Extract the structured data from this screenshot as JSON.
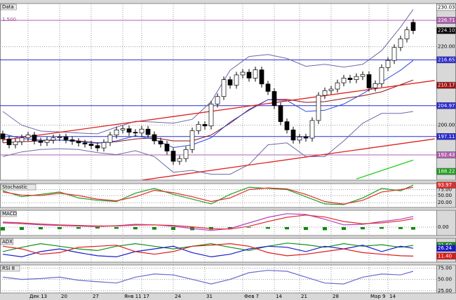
{
  "chart_data": [
    {
      "type": "candlestick",
      "title": "Data",
      "annotation": "1.500",
      "categories": [
        null,
        null,
        null,
        null,
        "Дек 13",
        null,
        null,
        null,
        null,
        "20",
        null,
        null,
        null,
        null,
        "27",
        null,
        null,
        null,
        null,
        "Янв 11",
        null,
        null,
        "17",
        null,
        null,
        null,
        null,
        "24",
        null,
        null,
        null,
        null,
        "31",
        null,
        null,
        null,
        null,
        null,
        "Фев 7",
        null,
        null,
        null,
        null,
        "14",
        null,
        null,
        null,
        "21",
        null,
        null,
        null,
        null,
        "28",
        null,
        null,
        null,
        null,
        null,
        "Мар 9",
        null,
        null,
        "14",
        null,
        null,
        null,
        null
      ],
      "open": [
        197.8,
        196.5,
        195.0,
        195.8,
        196.8,
        197.5,
        196.0,
        195.6,
        196.2,
        196.8,
        197.0,
        196.3,
        195.9,
        195.5,
        195.2,
        194.8,
        194.2,
        195.6,
        197.5,
        198.8,
        199.1,
        198.2,
        198.0,
        199.0,
        197.6,
        196.0,
        195.2,
        193.4,
        190.8,
        191.5,
        193.8,
        198.6,
        200.2,
        199.8,
        205.4,
        207.3,
        211.6,
        210.2,
        212.8,
        213.5,
        212.0,
        214.1,
        210.5,
        208.6,
        205.0,
        200.9,
        198.8,
        196.2,
        197.0,
        196.7,
        201.2,
        207.6,
        208.8,
        209.2,
        210.8,
        212.0,
        211.6,
        212.4,
        212.9,
        209.5,
        210.6,
        214.7,
        216.5,
        219.8,
        222.0,
        226.2
      ],
      "high": [
        198.6,
        197.3,
        196.6,
        197.6,
        198.3,
        198.3,
        196.8,
        197.0,
        197.6,
        197.8,
        197.8,
        197.1,
        196.7,
        196.3,
        196.0,
        195.6,
        196.4,
        198.3,
        199.6,
        199.9,
        199.9,
        199.0,
        199.8,
        199.8,
        198.4,
        196.8,
        196.0,
        194.2,
        192.3,
        194.6,
        199.4,
        201.0,
        201.0,
        206.2,
        208.1,
        212.4,
        212.4,
        213.6,
        214.3,
        214.3,
        214.9,
        214.9,
        211.3,
        209.4,
        205.8,
        201.7,
        199.6,
        197.8,
        197.8,
        202.0,
        208.4,
        209.6,
        210.0,
        211.6,
        212.8,
        212.8,
        213.2,
        213.7,
        213.7,
        211.4,
        215.5,
        217.3,
        220.6,
        222.8,
        225.1,
        227.0
      ],
      "low": [
        195.6,
        194.1,
        194.1,
        194.9,
        195.9,
        195.1,
        194.7,
        194.7,
        195.3,
        195.9,
        195.4,
        195.0,
        194.6,
        194.3,
        193.9,
        193.3,
        193.3,
        194.7,
        196.6,
        197.9,
        197.3,
        197.1,
        197.1,
        196.7,
        195.1,
        194.3,
        192.5,
        189.9,
        189.9,
        190.6,
        192.9,
        197.7,
        198.9,
        198.9,
        204.5,
        206.4,
        209.3,
        209.3,
        211.9,
        211.1,
        211.1,
        209.6,
        207.7,
        204.1,
        200.0,
        197.9,
        195.3,
        195.3,
        195.8,
        195.8,
        200.3,
        206.7,
        207.9,
        208.3,
        209.9,
        210.7,
        210.7,
        211.5,
        208.6,
        208.6,
        209.7,
        213.8,
        215.6,
        218.9,
        221.1,
        223.2
      ],
      "close": [
        196.5,
        195.0,
        195.8,
        196.8,
        197.5,
        196.0,
        195.6,
        196.2,
        196.8,
        197.0,
        196.3,
        195.9,
        195.5,
        195.2,
        194.8,
        194.2,
        195.6,
        197.5,
        198.8,
        199.1,
        198.2,
        198.0,
        199.0,
        197.6,
        196.0,
        195.2,
        193.4,
        190.8,
        191.5,
        193.8,
        198.6,
        200.2,
        199.8,
        205.4,
        207.3,
        211.6,
        210.2,
        212.8,
        213.5,
        212.0,
        214.1,
        210.5,
        208.6,
        205.0,
        200.9,
        198.8,
        196.2,
        197.0,
        196.7,
        201.2,
        207.6,
        208.8,
        209.2,
        210.8,
        212.0,
        211.6,
        212.4,
        212.9,
        209.5,
        210.6,
        214.7,
        216.5,
        219.8,
        222.0,
        224.3,
        224.1
      ],
      "up_color": "#ffffff",
      "down_color": "#000000",
      "ylim": [
        186,
        231
      ],
      "yticks": [
        {
          "value": 200,
          "label": "200.00"
        },
        {
          "value": 220,
          "label": "220.00"
        }
      ],
      "overlays": {
        "x": [
          0,
          3,
          6,
          9,
          12,
          15,
          18,
          21,
          24,
          27,
          30,
          33,
          36,
          39,
          42,
          45,
          48,
          51,
          54,
          57,
          60,
          63,
          65
        ],
        "series": [
          {
            "color": "#8b1010",
            "values": [
              195.5,
              195.8,
              196.0,
              196.2,
              196.0,
              195.5,
              195.8,
              196.5,
              196.8,
              196.0,
              196.0,
              197.5,
              200.5,
              204.0,
              206.5,
              206.6,
              205.8,
              206.0,
              206.8,
              207.5,
              208.5,
              210.3,
              211.5
            ]
          },
          {
            "color": "#6a6aa8",
            "values": [
              203.5,
              200.0,
              198.5,
              198.3,
              198.0,
              197.8,
              199.5,
              201.0,
              200.8,
              200.5,
              201.5,
              206.0,
              214.0,
              217.5,
              218.0,
              217.0,
              215.0,
              215.5,
              214.8,
              215.5,
              219.0,
              225.0,
              229.5
            ]
          },
          {
            "color": "#6a6aa8",
            "values": [
              192.0,
              193.2,
              193.8,
              194.0,
              193.8,
              193.0,
              192.5,
              193.5,
              192.0,
              188.0,
              188.5,
              187.5,
              187.5,
              190.0,
              195.0,
              195.5,
              192.0,
              192.0,
              196.0,
              200.5,
              203.0,
              203.0,
              203.5
            ]
          },
          {
            "color": "#2a4de0",
            "values": [
              197.8,
              196.6,
              196.2,
              196.2,
              195.9,
              195.4,
              196.0,
              197.3,
              196.4,
              194.3,
              195.0,
              196.8,
              200.8,
              203.8,
              206.5,
              206.3,
              203.5,
              203.8,
              205.4,
              208.0,
              211.0,
              214.0,
              216.5
            ]
          }
        ]
      },
      "trendlines": [
        {
          "color": "#e02020",
          "x": [
            0,
            68.4
          ],
          "y": [
            196.2,
            211.4
          ]
        },
        {
          "color": "#e02020",
          "x": [
            22,
            68.4
          ],
          "y": [
            186,
            196.5
          ]
        },
        {
          "color": "#20d020",
          "x": [
            56,
            65
          ],
          "y": [
            186.3,
            191.1
          ]
        }
      ],
      "levels": [
        {
          "value": 230.03,
          "label": "230.03",
          "color": "#ffffff",
          "line": false
        },
        {
          "value": 226.71,
          "label": "226.71",
          "color": "#b060b0",
          "line": true
        },
        {
          "value": 224.1,
          "label": "224.10",
          "color": "#000000",
          "line": false
        },
        {
          "value": 216.65,
          "label": "216.65",
          "color": "#2a2ad0",
          "line": true
        },
        {
          "value": 210.17,
          "label": "210.17",
          "color": "#a01010",
          "line": false
        },
        {
          "value": 204.97,
          "label": "204.97",
          "color": "#2a2ad0",
          "line": true
        },
        {
          "value": 197.11,
          "label": "197.11",
          "color": "#2a2ad0",
          "line": true
        },
        {
          "value": 192.43,
          "label": "192.43",
          "color": "#b060b0",
          "line": true
        },
        {
          "value": 188.22,
          "label": "188.22",
          "color": "#20a020",
          "line": false
        }
      ]
    },
    {
      "type": "line",
      "title": "Stochastic",
      "x": [
        0,
        3,
        6,
        9,
        12,
        15,
        18,
        21,
        24,
        27,
        30,
        33,
        36,
        39,
        42,
        45,
        48,
        51,
        54,
        57,
        60,
        63,
        65
      ],
      "series": [
        {
          "color": "#20a020",
          "values": [
            70,
            45,
            55,
            65,
            40,
            30,
            25,
            60,
            80,
            55,
            35,
            15,
            55,
            85,
            80,
            75,
            45,
            15,
            12,
            40,
            80,
            70,
            93.97
          ]
        },
        {
          "color": "#e03030",
          "values": [
            65,
            52,
            50,
            60,
            50,
            35,
            28,
            45,
            72,
            62,
            45,
            25,
            40,
            75,
            82,
            78,
            55,
            25,
            14,
            30,
            65,
            75,
            85
          ]
        }
      ],
      "ylim": [
        0,
        100
      ],
      "yticks": [
        {
          "value": 75,
          "label": "75.00"
        },
        {
          "value": 50,
          "label": "50.00"
        },
        {
          "value": 20,
          "label": "20.00"
        }
      ],
      "levels": [
        {
          "value": 93.97,
          "label": "93.97",
          "color": "#e03030",
          "line": false
        }
      ]
    },
    {
      "type": "line",
      "title": "MACD",
      "x": [
        0,
        3,
        6,
        9,
        12,
        15,
        18,
        21,
        24,
        27,
        30,
        33,
        36,
        39,
        42,
        45,
        48,
        51,
        54,
        57,
        60,
        63,
        65
      ],
      "series": [
        {
          "color": "#0a8a0a",
          "kind": "bar",
          "values": [
            -1.2,
            -1.0,
            -0.8,
            -0.7,
            -0.6,
            -0.5,
            -0.6,
            -0.8,
            -0.9,
            -1.0,
            -1.1,
            -0.9,
            -0.5,
            -0.2,
            -0.6,
            -0.8,
            -1.0,
            -1.1,
            -1.0,
            -0.8,
            -0.6,
            -0.7,
            -0.9
          ]
        },
        {
          "color": "#b040c0",
          "values": [
            1.5,
            1.2,
            0.8,
            0.6,
            0.4,
            0.2,
            0.5,
            1.0,
            0.8,
            0.3,
            -0.5,
            -1.2,
            -0.5,
            1.5,
            3.5,
            4.8,
            4.5,
            2.8,
            0.8,
            1.0,
            2.0,
            2.8,
            3.8
          ]
        },
        {
          "color": "#e03030",
          "values": [
            1.8,
            1.5,
            1.1,
            0.8,
            0.6,
            0.4,
            0.4,
            0.7,
            0.8,
            0.6,
            0.1,
            -0.6,
            -0.7,
            0.3,
            2.0,
            3.5,
            4.3,
            3.6,
            2.0,
            1.2,
            1.5,
            2.2,
            3.0
          ]
        }
      ],
      "ylim": [
        -3,
        6
      ],
      "yticks": [
        {
          "value": 0,
          "label": "0.00"
        }
      ]
    },
    {
      "type": "line",
      "title": "ADX",
      "x": [
        0,
        3,
        6,
        9,
        12,
        15,
        18,
        21,
        24,
        27,
        30,
        33,
        36,
        39,
        42,
        45,
        48,
        51,
        54,
        57,
        60,
        63,
        65
      ],
      "series": [
        {
          "color": "#10901a",
          "values": [
            20,
            28,
            35,
            30,
            25,
            22,
            30,
            35,
            30,
            25,
            30,
            35,
            28,
            22,
            30,
            36,
            33,
            28,
            35,
            30,
            33,
            28,
            31.6
          ]
        },
        {
          "color": "#1a1ad0",
          "values": [
            15,
            10,
            20,
            25,
            18,
            12,
            10,
            20,
            25,
            30,
            18,
            10,
            15,
            25,
            30,
            28,
            20,
            30,
            25,
            32,
            20,
            30,
            26.24
          ]
        },
        {
          "color": "#e01a1a",
          "values": [
            30,
            25,
            15,
            18,
            28,
            30,
            32,
            20,
            15,
            20,
            30,
            32,
            35,
            30,
            18,
            12,
            15,
            20,
            25,
            18,
            15,
            12,
            11.4
          ]
        }
      ],
      "ylim": [
        0,
        45
      ],
      "yticks": [],
      "levels": [
        {
          "value": 31.6,
          "label": "31.60",
          "color": "#10901a",
          "line": false
        },
        {
          "value": 26.24,
          "label": "26.24",
          "color": "#1a1ad0",
          "line": false
        },
        {
          "value": 11.4,
          "label": "11.40",
          "color": "#e01a1a",
          "line": false
        }
      ]
    },
    {
      "type": "line",
      "title": "RSI 8",
      "x": [
        0,
        3,
        6,
        9,
        12,
        15,
        18,
        21,
        24,
        27,
        30,
        33,
        36,
        39,
        42,
        45,
        48,
        51,
        54,
        57,
        60,
        63,
        65
      ],
      "series": [
        {
          "color": "#6a6ad0",
          "values": [
            55,
            50,
            52,
            55,
            48,
            45,
            42,
            55,
            62,
            60,
            50,
            40,
            50,
            65,
            70,
            68,
            55,
            42,
            40,
            55,
            62,
            60,
            68
          ]
        }
      ],
      "ylim": [
        20,
        82
      ],
      "yticks": [
        {
          "value": 75,
          "label": "75.00"
        },
        {
          "value": 50,
          "label": "50.00"
        },
        {
          "value": 25,
          "label": "25.00"
        }
      ]
    }
  ]
}
